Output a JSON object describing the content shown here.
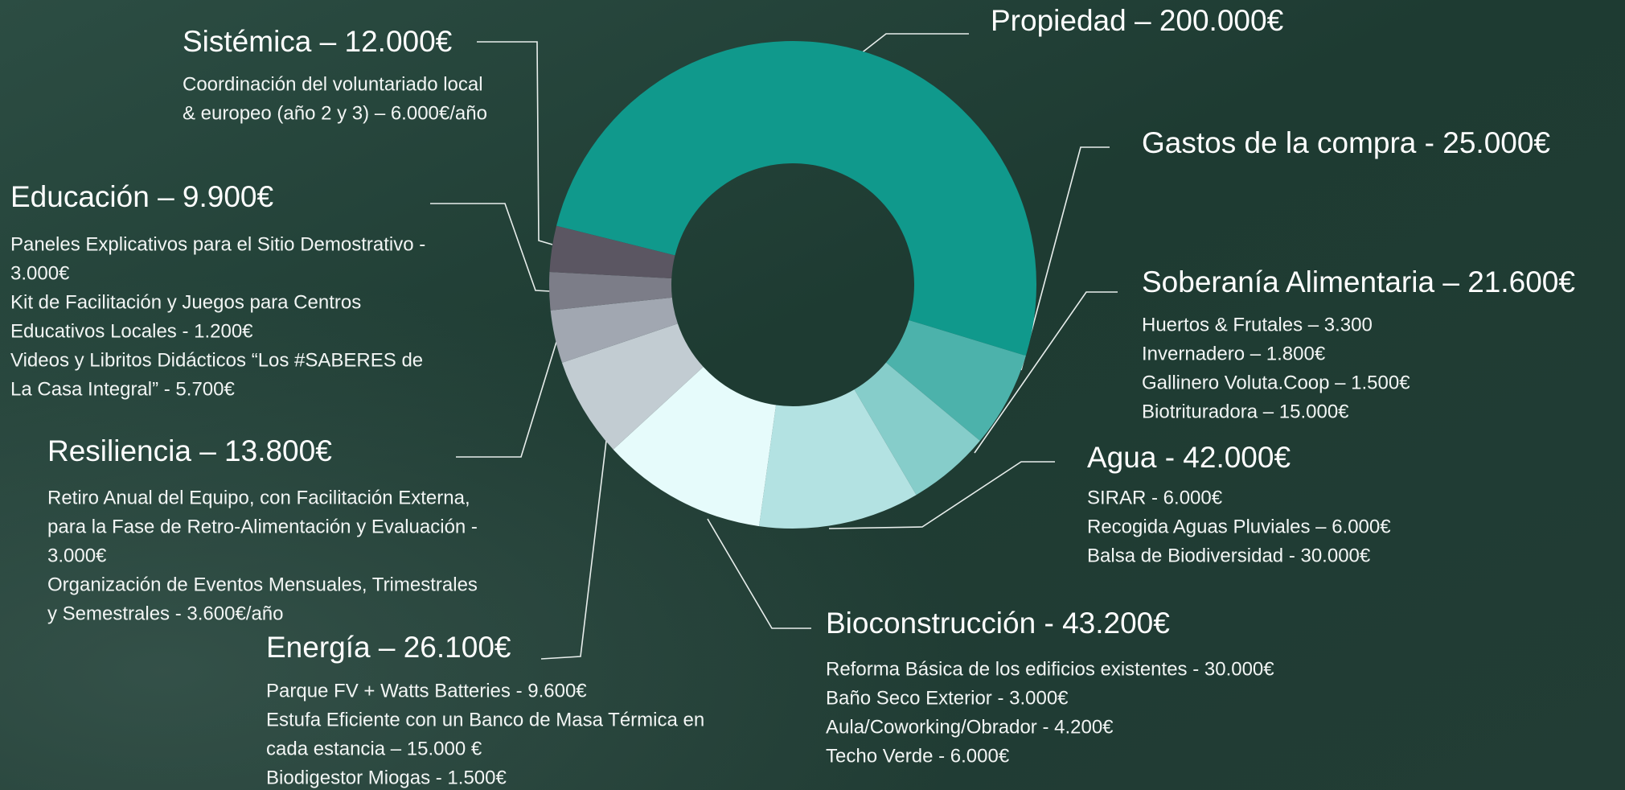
{
  "chart_data": {
    "type": "donut",
    "categories": [
      "Propiedad – 200.000€",
      "Gastos de la compra - 25.000€",
      "Soberanía Alimentaria – 21.600€",
      "Agua - 42.000€",
      "Bioconstrucción - 43.200€",
      "Energía – 26.100€",
      "Resiliencia – 13.800€",
      "Educación – 9.900€",
      "Sistémica – 12.000€"
    ],
    "values": [
      200000,
      25000,
      21600,
      42000,
      43200,
      26100,
      13800,
      9900,
      12000
    ],
    "colors": [
      "#10998c",
      "#4cb2ab",
      "#86cdca",
      "#b3e2e2",
      "#e6fbfb",
      "#c2ccd2",
      "#a1a7b1",
      "#7c7d88",
      "#5b5662"
    ],
    "details": [
      [],
      [],
      [
        "Huertos & Frutales – 3.300",
        "Invernadero – 1.800€",
        "Gallinero Voluta.Coop – 1.500€",
        "Biotrituradora – 15.000€"
      ],
      [
        "SIRAR - 6.000€",
        "Recogida Aguas Pluviales – 6.000€",
        "Balsa de Biodiversidad - 30.000€"
      ],
      [
        "Reforma Básica de los edificios existentes - 30.000€",
        "Baño Seco Exterior - 3.000€",
        "Aula/Coworking/Obrador  - 4.200€",
        "Techo Verde -  6.000€"
      ],
      [
        "Parque FV + Watts Batteries - 9.600€",
        "Estufa Eficiente con un Banco de Masa Térmica en",
        "cada estancia – 15.000 €",
        "Biodigestor Miogas - 1.500€"
      ],
      [
        "Retiro Anual del Equipo, con Facilitación Externa,",
        "para la Fase de Retro-Alimentación y Evaluación -",
        "3.000€",
        "Organización de Eventos Mensuales, Trimestrales",
        "y Semestrales - 3.600€/año"
      ],
      [
        "Paneles Explicativos para el Sitio Demostrativo -",
        "3.000€",
        "Kit de Facilitación y Juegos para Centros",
        "Educativos Locales - 1.200€",
        "Videos y Libritos Didácticos “Los #SABERES de",
        "La Casa Integral” - 5.700€"
      ],
      [
        "Coordinación del voluntariado local",
        "& europeo (año 2 y 3) – 6.000€/año"
      ]
    ]
  }
}
